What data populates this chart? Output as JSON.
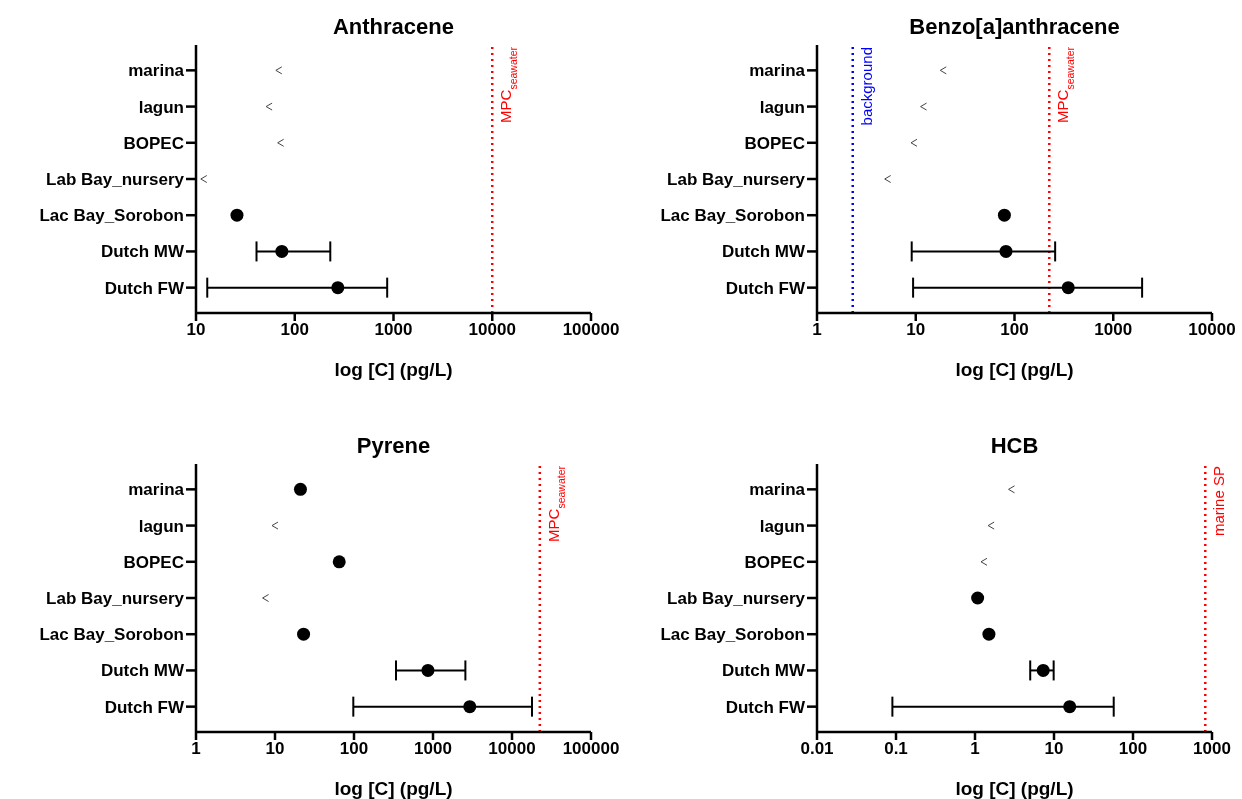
{
  "chart_data": [
    {
      "type": "scatter",
      "title": "Anthracene",
      "xlabel": "log [C] (pg/L)",
      "orientation": "horizontal",
      "log": "x",
      "categories": [
        "marina",
        "lagun",
        "BOPEC",
        "Lab Bay_nursery",
        "Lac Bay_Sorobon",
        "Dutch MW",
        "Dutch FW"
      ],
      "xlim": [
        10,
        100000
      ],
      "xticks": [
        10,
        100,
        1000,
        10000,
        100000
      ],
      "series": [
        {
          "color": "#000000",
          "marker": "circle",
          "values": [
            null,
            null,
            null,
            null,
            26,
            74,
            273
          ],
          "errors": [
            null,
            null,
            null,
            null,
            null,
            [
              41,
              229
            ],
            [
              13,
              863
            ]
          ]
        },
        {
          "color": "#444444",
          "marker": "cross",
          "values": [
            69,
            55,
            72,
            12,
            null,
            null,
            null
          ]
        }
      ],
      "ref_lines": [
        {
          "axis": "x",
          "value": 10000,
          "label": "MPC$_{seawater}$",
          "color": "#ff0000",
          "line_style": "dotted"
        }
      ]
    },
    {
      "type": "scatter",
      "title": "Benzo[a]anthracene",
      "xlabel": "log [C] (pg/L)",
      "orientation": "horizontal",
      "log": "x",
      "categories": [
        "marina",
        "lagun",
        "BOPEC",
        "Lab Bay_nursery",
        "Lac Bay_Sorobon",
        "Dutch MW",
        "Dutch FW"
      ],
      "xlim": [
        1,
        10000
      ],
      "xticks": [
        1,
        10,
        100,
        1000,
        10000
      ],
      "series": [
        {
          "color": "#000000",
          "marker": "circle",
          "values": [
            null,
            null,
            null,
            null,
            79,
            82,
            350
          ],
          "errors": [
            null,
            null,
            null,
            null,
            null,
            [
              9.1,
              258
            ],
            [
              9.4,
              1960
            ]
          ]
        },
        {
          "color": "#444444",
          "marker": "cross",
          "values": [
            19,
            12,
            9.6,
            5.2,
            null,
            null,
            null
          ]
        }
      ],
      "ref_lines": [
        {
          "axis": "x",
          "value": 2.3,
          "label": "background",
          "color": "#0000ff",
          "line_style": "dotted"
        },
        {
          "axis": "x",
          "value": 225,
          "label": "MPC$_{seawater}$",
          "color": "#ff0000",
          "line_style": "dotted"
        }
      ]
    },
    {
      "type": "scatter",
      "title": "Pyrene",
      "xlabel": "log [C] (pg/L)",
      "orientation": "horizontal",
      "log": "x",
      "categories": [
        "marina",
        "lagun",
        "BOPEC",
        "Lab Bay_nursery",
        "Lac Bay_Sorobon",
        "Dutch MW",
        "Dutch FW"
      ],
      "xlim": [
        1,
        100000
      ],
      "xticks": [
        1,
        10,
        100,
        1000,
        10000,
        100000
      ],
      "series": [
        {
          "color": "#000000",
          "marker": "circle",
          "values": [
            21,
            null,
            65,
            null,
            23,
            863,
            2920
          ],
          "errors": [
            null,
            null,
            null,
            null,
            null,
            [
              340,
              2570
            ],
            [
              98,
              17900
            ]
          ]
        },
        {
          "color": "#444444",
          "marker": "cross",
          "values": [
            null,
            10,
            null,
            7.6,
            null,
            null,
            null
          ]
        }
      ],
      "ref_lines": [
        {
          "axis": "x",
          "value": 22500,
          "label": "MPC$_{seawater}$",
          "color": "#ff0000",
          "line_style": "dotted"
        }
      ]
    },
    {
      "type": "scatter",
      "title": "HCB",
      "xlabel": "log [C] (pg/L)",
      "orientation": "horizontal",
      "log": "x",
      "categories": [
        "marina",
        "lagun",
        "BOPEC",
        "Lab Bay_nursery",
        "Lac Bay_Sorobon",
        "Dutch MW",
        "Dutch FW"
      ],
      "xlim": [
        0.01,
        1000
      ],
      "xticks": [
        0.01,
        0.1,
        1,
        10,
        100,
        1000
      ],
      "series": [
        {
          "color": "#000000",
          "marker": "circle",
          "values": [
            null,
            null,
            null,
            1.08,
            1.5,
            7.3,
            15.8
          ],
          "errors": [
            null,
            null,
            null,
            null,
            null,
            [
              5.0,
              9.9
            ],
            [
              0.09,
              57
            ]
          ]
        },
        {
          "color": "#444444",
          "marker": "cross",
          "values": [
            2.9,
            1.6,
            1.3,
            null,
            null,
            null,
            null
          ]
        }
      ],
      "ref_lines": [
        {
          "axis": "x",
          "value": 822,
          "label": "marine SP",
          "color": "#ff0000",
          "line_style": "dotted"
        }
      ]
    }
  ]
}
